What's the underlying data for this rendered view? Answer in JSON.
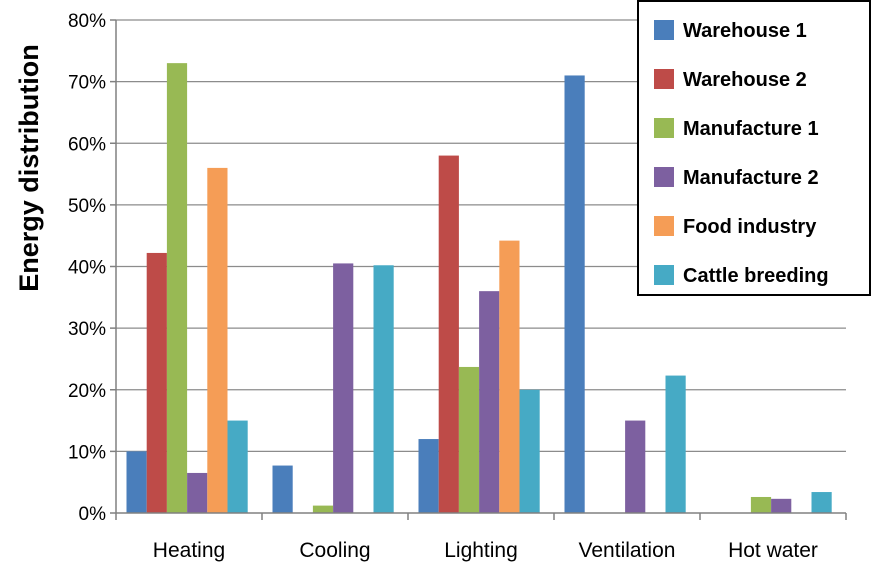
{
  "chart_data": {
    "type": "bar",
    "title": "",
    "ylabel": "Energy distribution",
    "xlabel": "",
    "ylim": [
      0,
      80
    ],
    "yticks": [
      "0%",
      "10%",
      "20%",
      "30%",
      "40%",
      "50%",
      "60%",
      "70%",
      "80%"
    ],
    "grid": true,
    "legend_position": "top-right",
    "categories": [
      "Heating",
      "Cooling",
      "Lighting",
      "Ventilation",
      "Hot water"
    ],
    "series": [
      {
        "name": "Warehouse 1",
        "color": "#4a7ebb",
        "values": [
          10,
          7.7,
          12,
          71,
          0
        ]
      },
      {
        "name": "Warehouse 2",
        "color": "#be4b48",
        "values": [
          42.2,
          0,
          58,
          0,
          0
        ]
      },
      {
        "name": "Manufacture 1",
        "color": "#98b954",
        "values": [
          73,
          1.2,
          23.7,
          0,
          2.6
        ]
      },
      {
        "name": "Manufacture 2",
        "color": "#7d60a0",
        "values": [
          6.5,
          40.5,
          36,
          15,
          2.3
        ]
      },
      {
        "name": "Food industry",
        "color": "#f59d56",
        "values": [
          56,
          0,
          44.2,
          0,
          0
        ]
      },
      {
        "name": "Cattle breeding",
        "color": "#46aac5",
        "values": [
          15,
          40.2,
          20,
          22.3,
          3.4
        ]
      }
    ]
  }
}
